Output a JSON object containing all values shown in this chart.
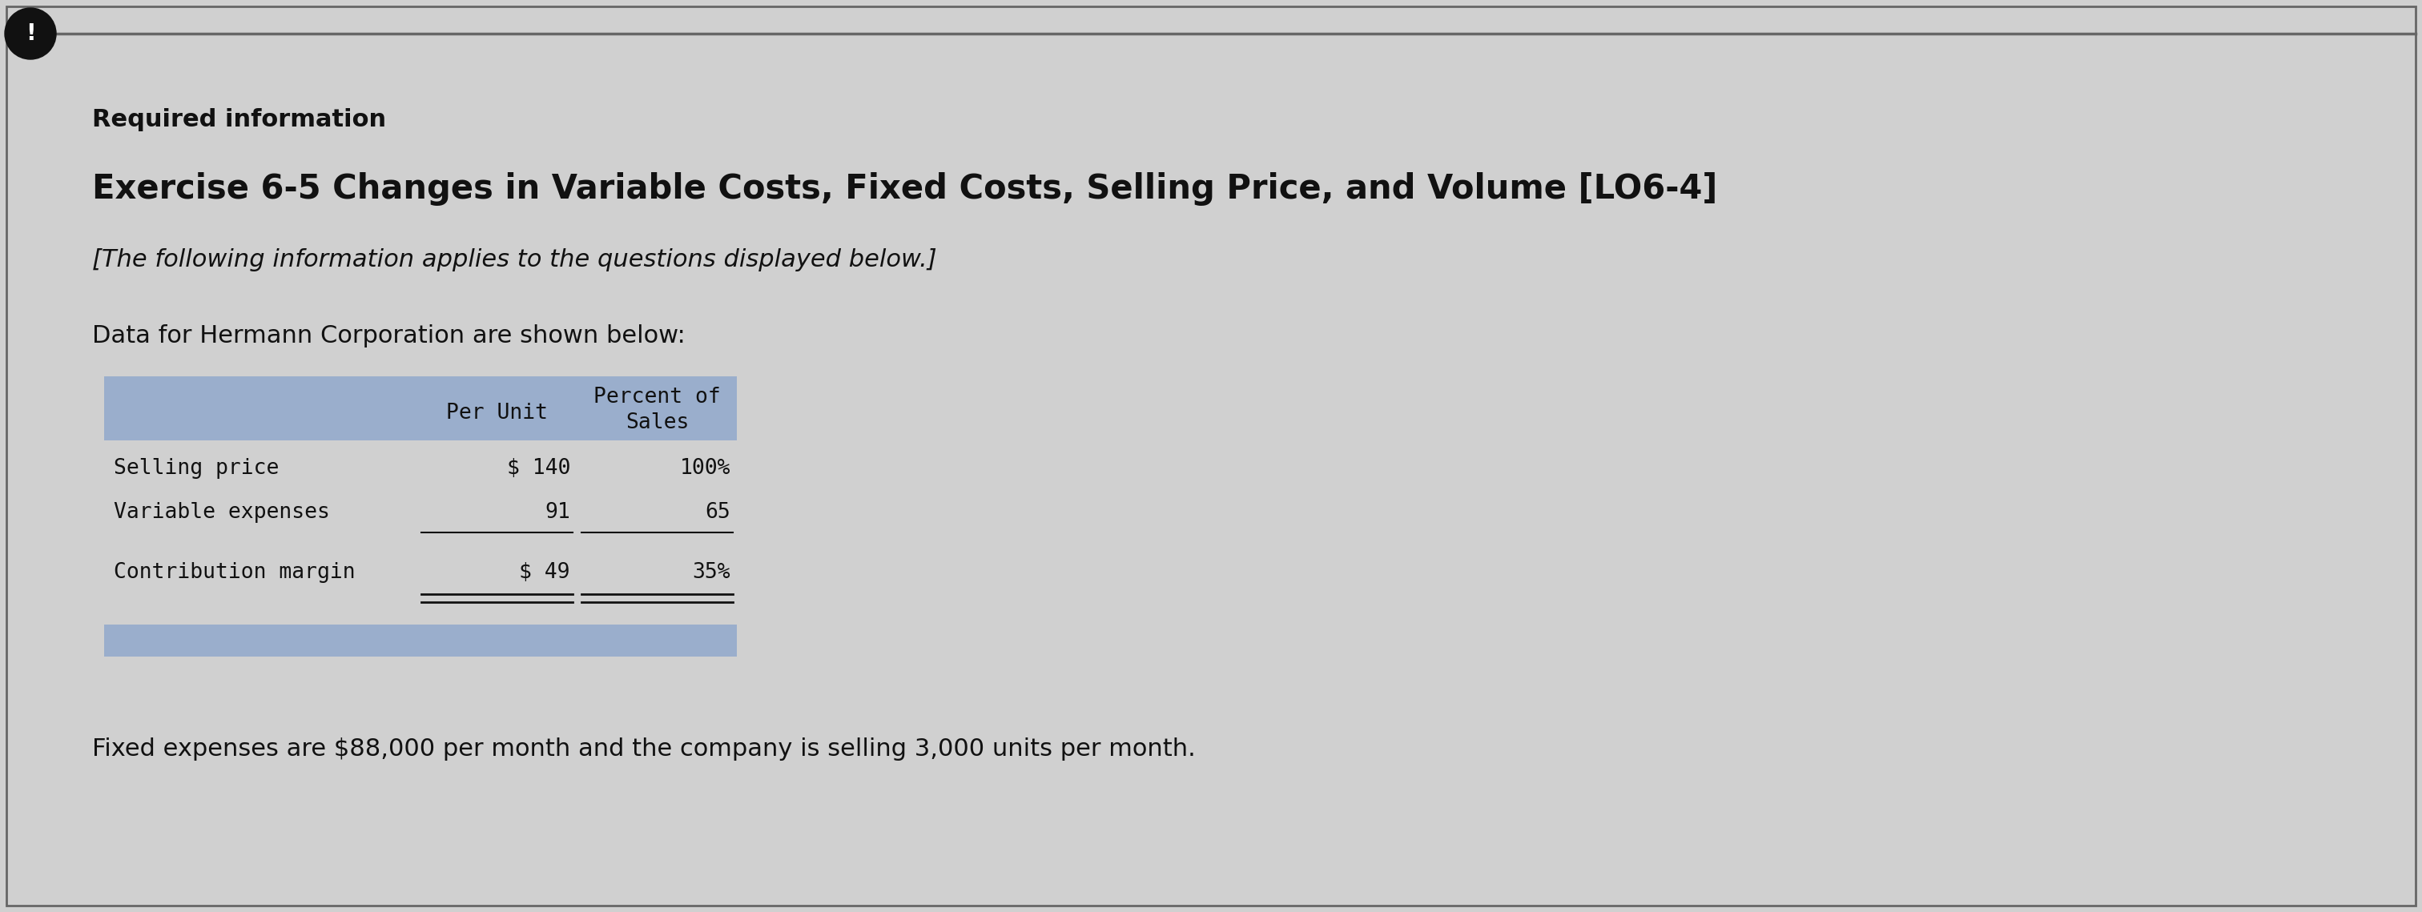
{
  "bg_color": "#d0d0d0",
  "border_color": "#666666",
  "exclamation_bg": "#111111",
  "exclamation_text": "!",
  "required_info_label": "Required information",
  "exercise_title": "Exercise 6-5 Changes in Variable Costs, Fixed Costs, Selling Price, and Volume [LO6-4]",
  "subtitle": "[The following information applies to the questions displayed below.]",
  "data_intro": "Data for Hermann Corporation are shown below:",
  "table_header_col2": "Per Unit",
  "table_header_col3_line1": "Percent of",
  "table_header_col3_line2": "Sales",
  "table_row1_label": "Selling price",
  "table_row1_col2": "$ 140",
  "table_row1_col3": "100%",
  "table_row2_label": "Variable expenses",
  "table_row2_col2": "91",
  "table_row2_col3": "65",
  "table_row3_label": "Contribution margin",
  "table_row3_col2": "$ 49",
  "table_row3_col3": "35%",
  "footer_text": "Fixed expenses are $88,000 per month and the company is selling 3,000 units per month.",
  "header_bg_color": "#9aaecc",
  "footer_bar_color": "#9aaecc",
  "table_font": "monospace",
  "body_font": "DejaVu Sans",
  "text_color": "#111111",
  "required_info_fontsize": 22,
  "exercise_title_fontsize": 30,
  "subtitle_fontsize": 22,
  "data_intro_fontsize": 22,
  "table_fontsize": 19,
  "footer_fontsize": 22
}
